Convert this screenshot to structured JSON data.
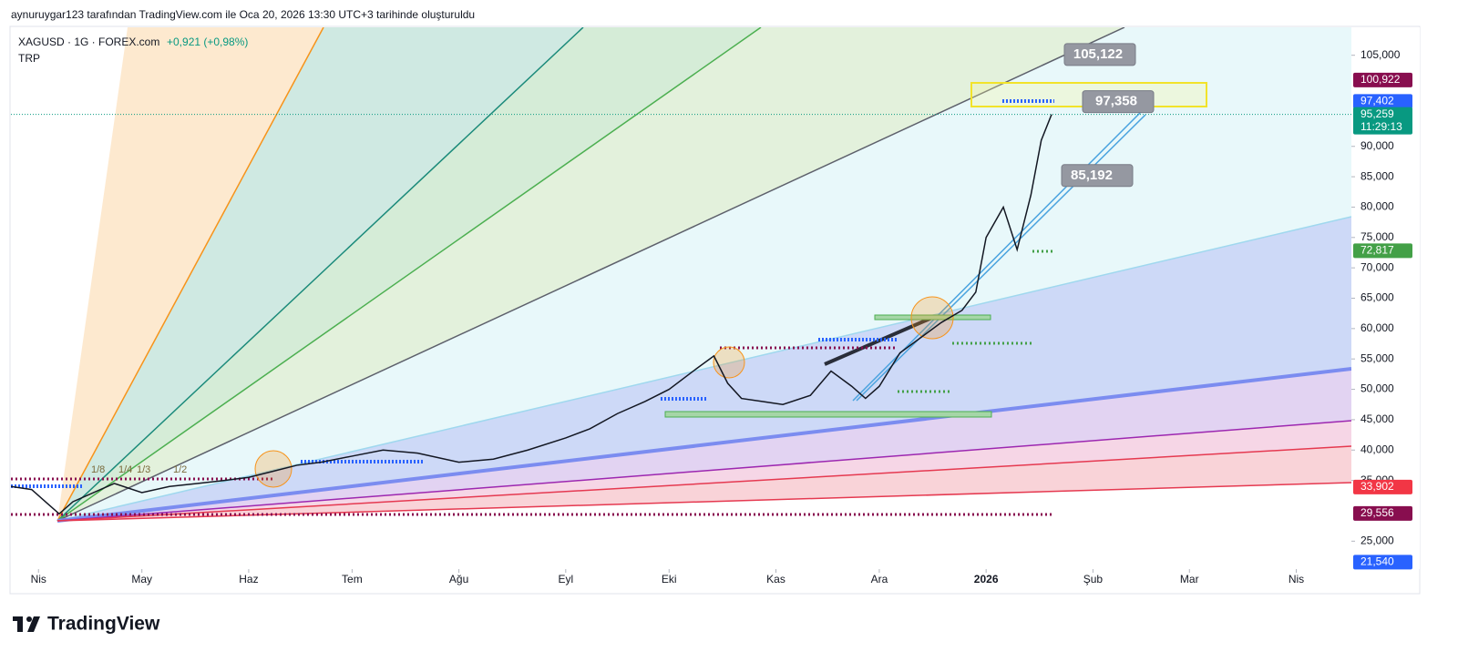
{
  "header": "aynuruygar123 tarafından TradingView.com ile Oca 20, 2026 13:30 UTC+3 tarihinde oluşturuldu",
  "logo": "TradingView",
  "chart_data": {
    "type": "line",
    "symbol": "XAGUSD · 1G · FOREX.com",
    "change": "+0,921 (+0,98%)",
    "currency": "TRP",
    "x": [
      -8,
      -2,
      3,
      6,
      10,
      16,
      22,
      30,
      38,
      46,
      54,
      61,
      68,
      75,
      82,
      91,
      100,
      110,
      122,
      132,
      142,
      153,
      160,
      168,
      176,
      183,
      190,
      196,
      200,
      204,
      210,
      216,
      224,
      230,
      236,
      240,
      244,
      250,
      256,
      262,
      268,
      272,
      275,
      280,
      284,
      288,
      291,
      294
    ],
    "series": [
      {
        "color": "#131722",
        "values": [
          34000,
          33500,
          31000,
          29500,
          31500,
          33000,
          34500,
          33000,
          34000,
          34500,
          35000,
          35500,
          36500,
          37500,
          38000,
          39000,
          40000,
          39500,
          38000,
          38500,
          40000,
          42000,
          43500,
          46000,
          48000,
          50000,
          53000,
          55500,
          51000,
          48500,
          48000,
          47500,
          49000,
          53000,
          50500,
          48500,
          50500,
          56000,
          58500,
          61000,
          63000,
          66000,
          75000,
          80000,
          73000,
          82000,
          91000,
          95259
        ]
      }
    ],
    "xlim": [
      -8,
      381
    ],
    "xticks": [
      {
        "value": 0,
        "label": "Nis"
      },
      {
        "value": 30,
        "label": "May"
      },
      {
        "value": 61,
        "label": "Haz"
      },
      {
        "value": 91,
        "label": "Tem"
      },
      {
        "value": 122,
        "label": "Ağu"
      },
      {
        "value": 153,
        "label": "Eyl"
      },
      {
        "value": 183,
        "label": "Eki"
      },
      {
        "value": 214,
        "label": "Kas"
      },
      {
        "value": 244,
        "label": "Ara"
      },
      {
        "value": 275,
        "label": "2026"
      },
      {
        "value": 306,
        "label": "Şub"
      },
      {
        "value": 334,
        "label": "Mar"
      },
      {
        "value": 365,
        "label": "Nis"
      }
    ],
    "ylim": [
      20400,
      109600
    ],
    "yticks": [
      {
        "value": 25000,
        "label": "25,000"
      },
      {
        "value": 35000,
        "label": "35,000"
      },
      {
        "value": 40000,
        "label": "40,000"
      },
      {
        "value": 45000,
        "label": "45,000"
      },
      {
        "value": 50000,
        "label": "50,000"
      },
      {
        "value": 55000,
        "label": "55,000"
      },
      {
        "value": 60000,
        "label": "60,000"
      },
      {
        "value": 65000,
        "label": "65,000"
      },
      {
        "value": 70000,
        "label": "70,000"
      },
      {
        "value": 75000,
        "label": "75,000"
      },
      {
        "value": 80000,
        "label": "80,000"
      },
      {
        "value": 85000,
        "label": "85,000"
      },
      {
        "value": 90000,
        "label": "90,000"
      },
      {
        "value": 105000,
        "label": "105,000"
      }
    ],
    "price_tags": [
      {
        "value": 100922,
        "label": "100,922",
        "color": "#880e4f"
      },
      {
        "value": 97402,
        "label": "97,402",
        "color": "#2962ff"
      },
      {
        "value": 95259,
        "label": "95,259",
        "color": "#089981",
        "timer": "11:29:13"
      },
      {
        "value": 72817,
        "label": "72,817",
        "color": "#43a047"
      },
      {
        "value": 33902,
        "label": "33,902",
        "color": "#f23645"
      },
      {
        "value": 29556,
        "label": "29,556",
        "color": "#880e4f"
      },
      {
        "value": 21540,
        "label": "21,540",
        "color": "#2962ff"
      }
    ],
    "callouts": [
      {
        "value": 105122,
        "label": "105,122"
      },
      {
        "value": 97358,
        "label": "97,358"
      },
      {
        "value": 85192,
        "label": "85,192"
      }
    ],
    "fan_labels": [
      "1/8",
      "1/4",
      "1/3",
      "1/2"
    ]
  }
}
